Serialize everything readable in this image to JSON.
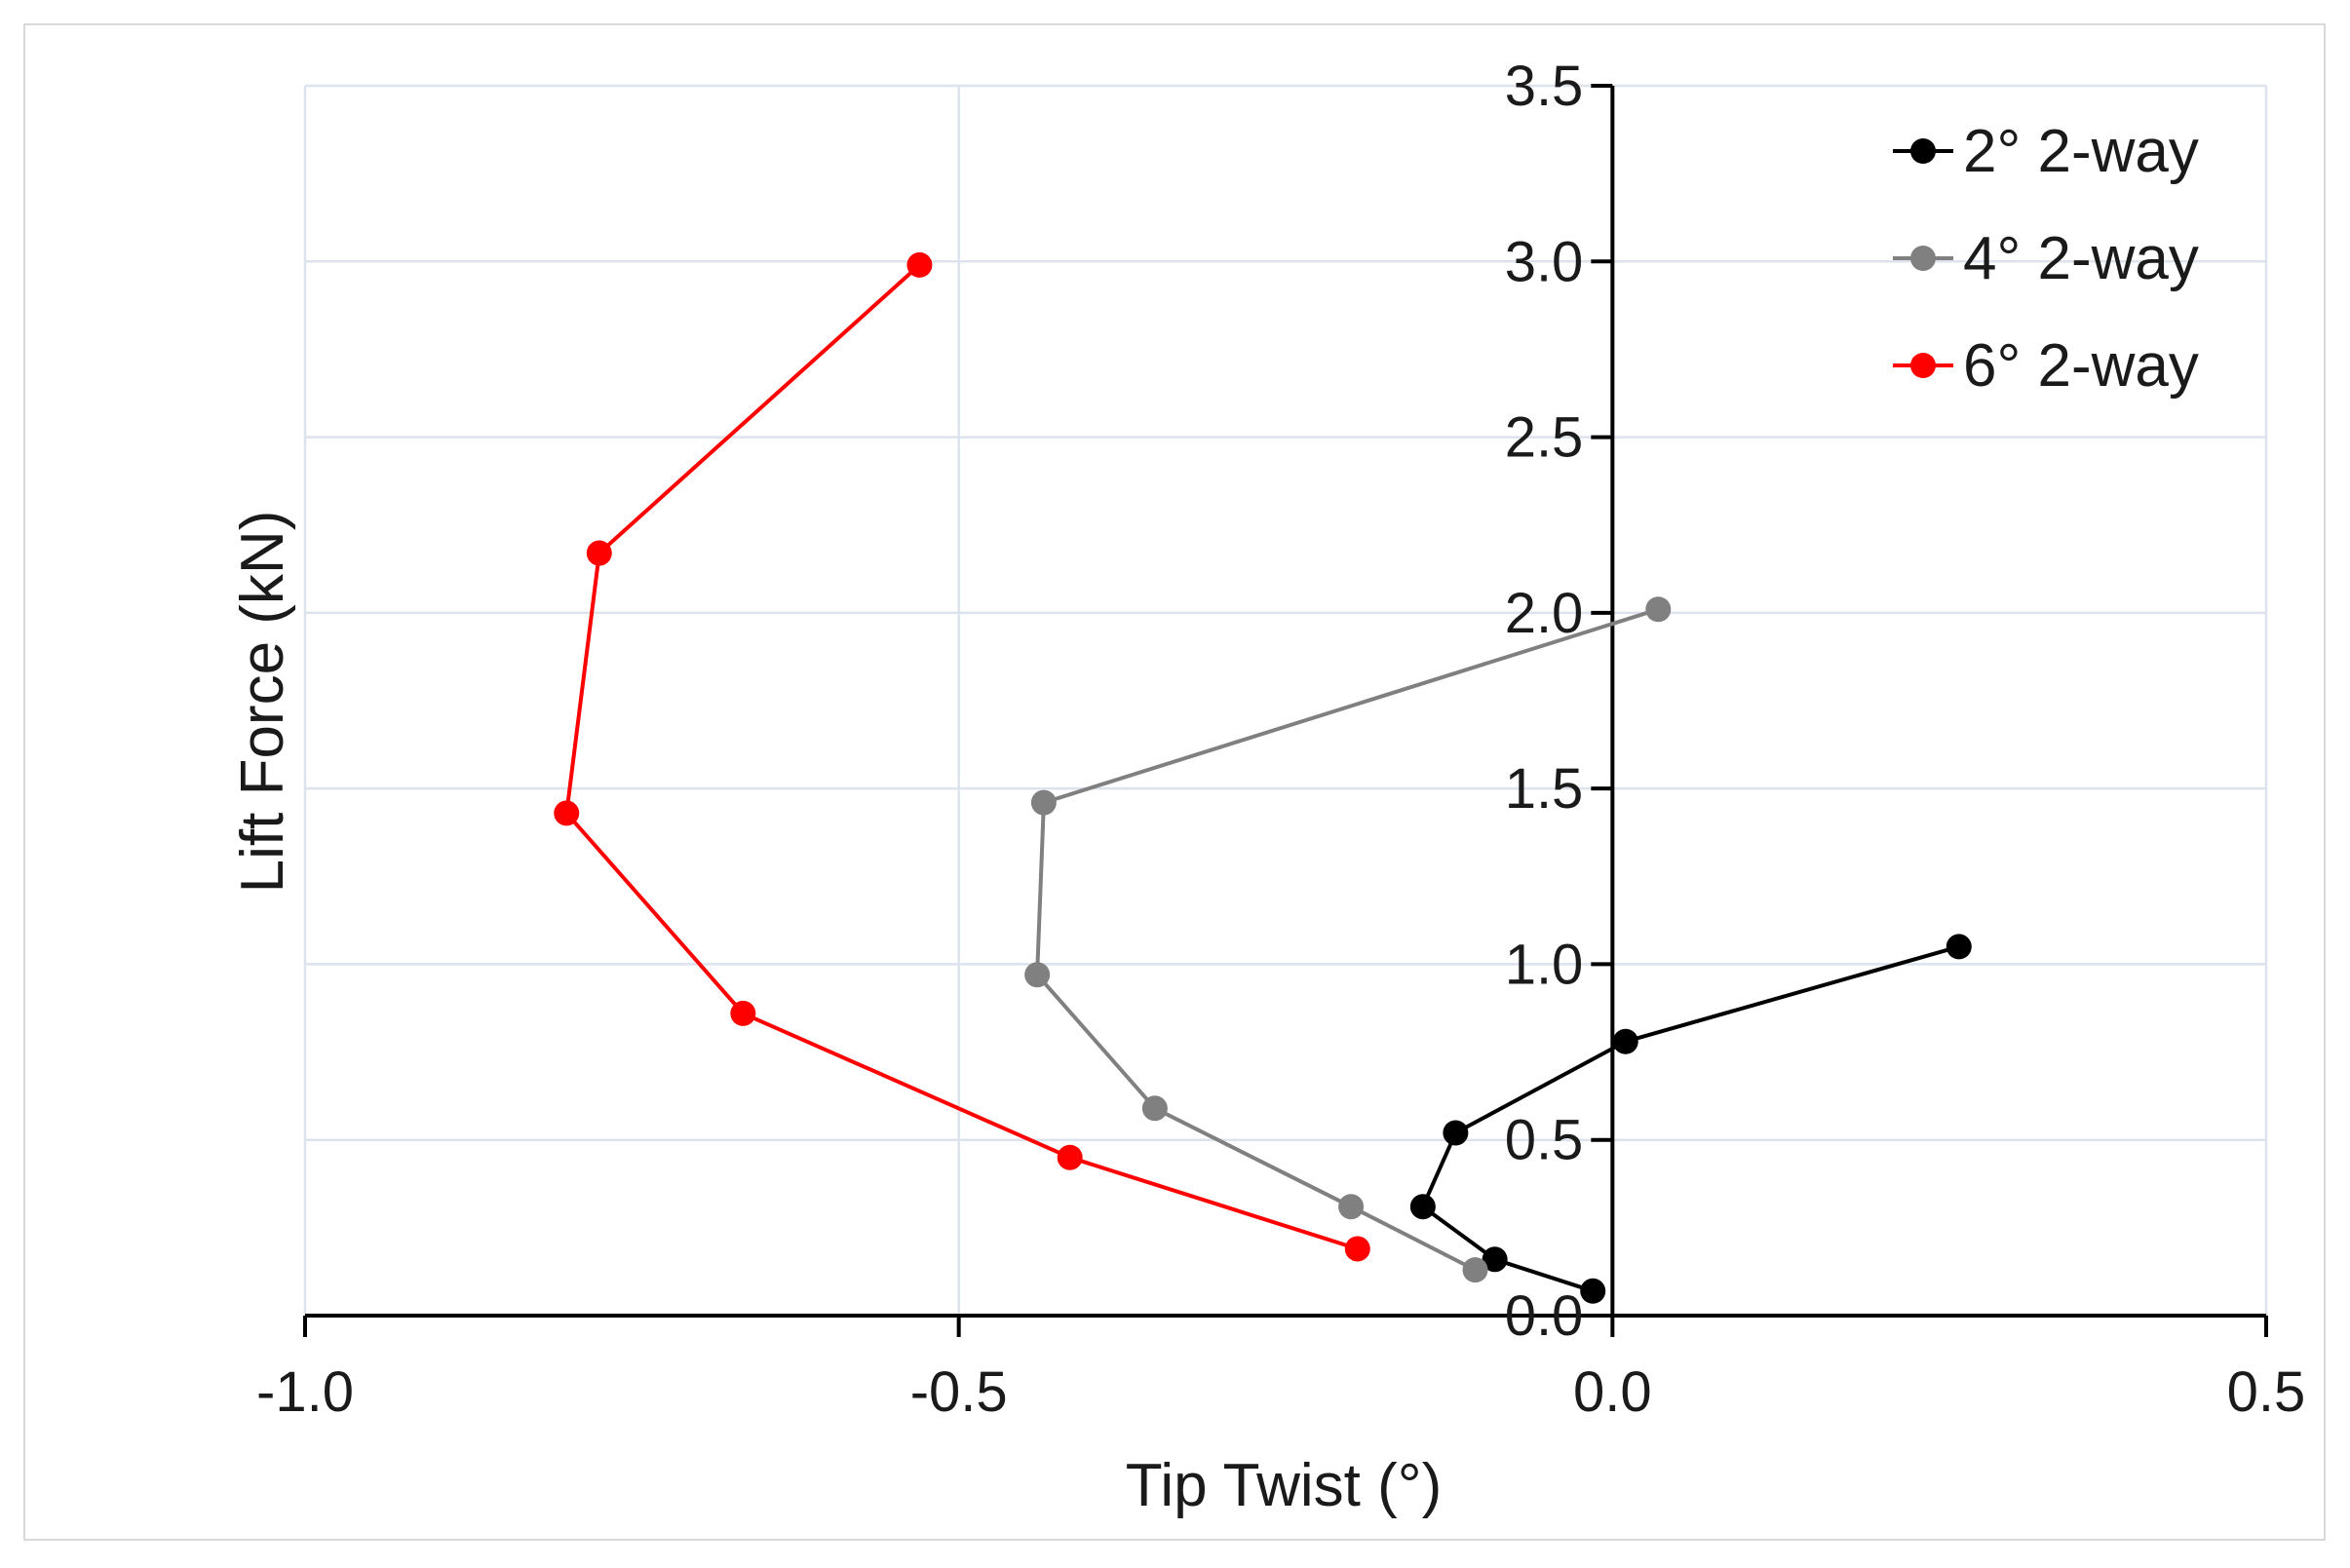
{
  "chart_data": {
    "type": "line",
    "title": "",
    "xlabel": "Tip Twist (°)",
    "ylabel": "Lift Force (kN)",
    "xlim": [
      -1.0,
      0.5
    ],
    "ylim": [
      0.0,
      3.5
    ],
    "x_ticks": [
      "-1.0",
      "-0.5",
      "0.0",
      "0.5"
    ],
    "y_ticks": [
      "0.0",
      "0.5",
      "1.0",
      "1.5",
      "2.0",
      "2.5",
      "3.0",
      "3.5"
    ],
    "grid": true,
    "legend_position": "top-right",
    "series": [
      {
        "name": "2° 2-way",
        "color": "#000000",
        "points": [
          {
            "x": -0.015,
            "y": 0.07
          },
          {
            "x": -0.09,
            "y": 0.16
          },
          {
            "x": -0.145,
            "y": 0.31
          },
          {
            "x": -0.12,
            "y": 0.52
          },
          {
            "x": 0.01,
            "y": 0.78
          },
          {
            "x": 0.265,
            "y": 1.05
          }
        ]
      },
      {
        "name": "4° 2-way",
        "color": "#808080",
        "points": [
          {
            "x": -0.105,
            "y": 0.13
          },
          {
            "x": -0.2,
            "y": 0.31
          },
          {
            "x": -0.35,
            "y": 0.59
          },
          {
            "x": -0.44,
            "y": 0.97
          },
          {
            "x": -0.435,
            "y": 1.46
          },
          {
            "x": 0.035,
            "y": 2.01
          }
        ]
      },
      {
        "name": "6° 2-way",
        "color": "#ff0000",
        "points": [
          {
            "x": -0.195,
            "y": 0.19
          },
          {
            "x": -0.415,
            "y": 0.45
          },
          {
            "x": -0.665,
            "y": 0.86
          },
          {
            "x": -0.8,
            "y": 1.43
          },
          {
            "x": -0.775,
            "y": 2.17
          },
          {
            "x": -0.53,
            "y": 2.99
          }
        ]
      }
    ]
  }
}
